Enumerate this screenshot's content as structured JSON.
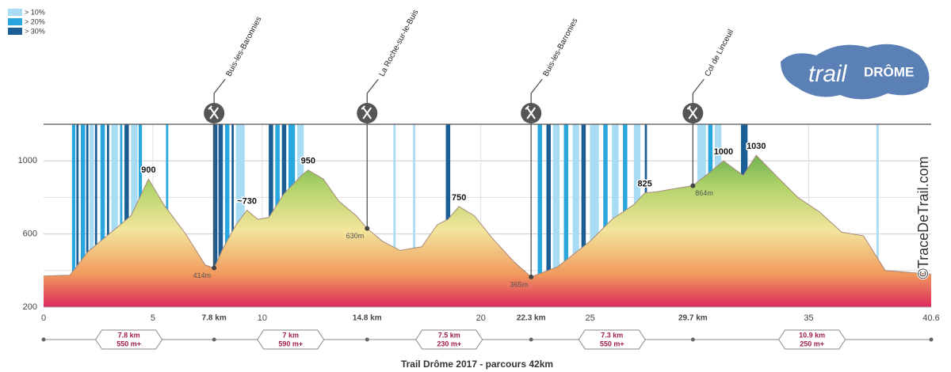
{
  "chart_data": {
    "type": "area",
    "title": "Trail Drôme 2017 - parcours 42km",
    "watermark": "©TraceDeTrail.com",
    "logo": {
      "text1": "trail",
      "text2": "DRÔME"
    },
    "legend": [
      {
        "label": "> 10%",
        "color": "#a8dcf4"
      },
      {
        "label": "> 20%",
        "color": "#2aa6df"
      },
      {
        "label": "> 30%",
        "color": "#1b5e95"
      }
    ],
    "xlim": [
      0,
      40.6
    ],
    "ylim": [
      200,
      1200
    ],
    "yticks": [
      200,
      600,
      1000
    ],
    "minor_yticks": [
      400,
      800
    ],
    "xticks": [
      0,
      5,
      {
        "value": 7.8,
        "label": "7.8 km"
      },
      10,
      {
        "value": 14.8,
        "label": "14.8 km"
      },
      20,
      {
        "value": 22.3,
        "label": "22.3 km"
      },
      25,
      {
        "value": 29.7,
        "label": "29.7 km"
      },
      35,
      40.6
    ],
    "x": [
      0,
      1.2,
      1.5,
      2,
      3,
      4,
      4.8,
      5.5,
      6.5,
      7.4,
      7.8,
      8.2,
      8.8,
      9.3,
      9.8,
      10.3,
      11,
      11.8,
      12.1,
      12.8,
      13.5,
      14.3,
      14.8,
      15.5,
      16.3,
      17.3,
      18,
      18.5,
      19,
      19.7,
      20.5,
      21.5,
      22.3,
      23.5,
      25,
      26,
      27,
      27.5,
      28,
      29,
      29.7,
      30.5,
      31.1,
      32,
      32.6,
      33.5,
      34.5,
      35.5,
      36.5,
      37.5,
      38.5,
      40.6
    ],
    "values": [
      370,
      375,
      420,
      500,
      600,
      700,
      900,
      760,
      600,
      430,
      414,
      520,
      650,
      730,
      680,
      690,
      820,
      920,
      950,
      900,
      780,
      700,
      630,
      560,
      510,
      530,
      650,
      680,
      750,
      700,
      580,
      450,
      365,
      420,
      560,
      680,
      760,
      825,
      830,
      850,
      864,
      940,
      1000,
      920,
      1030,
      920,
      800,
      720,
      610,
      590,
      400,
      380
    ],
    "peaks": [
      {
        "x": 4.8,
        "value": 900,
        "label": "900"
      },
      {
        "x": 9.3,
        "value": 730,
        "label": "~730"
      },
      {
        "x": 12.1,
        "value": 950,
        "label": "950"
      },
      {
        "x": 19,
        "value": 750,
        "label": "750"
      },
      {
        "x": 27.5,
        "value": 825,
        "label": "825"
      },
      {
        "x": 31.1,
        "value": 1000,
        "label": "1000"
      },
      {
        "x": 32.6,
        "value": 1030,
        "label": "1030"
      }
    ],
    "stations": [
      {
        "name": "Buis-les-Baronnies",
        "km": 7.8,
        "elevation": 414,
        "elevation_label": "414m"
      },
      {
        "name": "La Roche-sur-le-Buis",
        "km": 14.8,
        "elevation": 630,
        "elevation_label": "630m"
      },
      {
        "name": "Buis-les-Barronies",
        "km": 22.3,
        "elevation": 365,
        "elevation_label": "365m"
      },
      {
        "name": "Col de Linceuil",
        "km": 29.7,
        "elevation": 864,
        "elevation_label": "864m"
      }
    ],
    "segments": [
      {
        "distance": 7.8,
        "distance_label": "7.8 km",
        "climb": 550,
        "climb_label": "550 m+"
      },
      {
        "distance": 7,
        "distance_label": "7 km",
        "climb": 590,
        "climb_label": "590 m+"
      },
      {
        "distance": 7.5,
        "distance_label": "7.5 km",
        "climb": 230,
        "climb_label": "230 m+"
      },
      {
        "distance": 7.3,
        "distance_label": "7.3 km",
        "climb": 550,
        "climb_label": "550 m+"
      },
      {
        "distance": 10.9,
        "distance_label": "10.9 km",
        "climb": 250,
        "climb_label": "250 m+"
      }
    ],
    "steep_sections": [
      [
        1.3,
        1.45,
        1
      ],
      [
        1.5,
        1.6,
        2
      ],
      [
        1.7,
        1.9,
        1
      ],
      [
        1.95,
        2.05,
        2
      ],
      [
        2.1,
        2.3,
        0
      ],
      [
        2.35,
        2.45,
        2
      ],
      [
        2.6,
        2.8,
        1
      ],
      [
        2.9,
        3.0,
        2
      ],
      [
        3.1,
        3.4,
        0
      ],
      [
        3.5,
        3.6,
        1
      ],
      [
        3.7,
        3.9,
        2
      ],
      [
        4.0,
        4.3,
        0
      ],
      [
        4.35,
        4.5,
        1
      ],
      [
        5.6,
        5.7,
        1
      ],
      [
        7.75,
        7.95,
        2
      ],
      [
        8.0,
        8.2,
        2
      ],
      [
        8.3,
        8.5,
        1
      ],
      [
        8.6,
        8.7,
        2
      ],
      [
        8.8,
        9.2,
        0
      ],
      [
        10.3,
        10.5,
        2
      ],
      [
        10.6,
        10.8,
        1
      ],
      [
        10.9,
        11.1,
        2
      ],
      [
        11.2,
        11.5,
        1
      ],
      [
        11.6,
        11.9,
        0
      ],
      [
        16.0,
        16.1,
        0
      ],
      [
        16.9,
        17.0,
        0
      ],
      [
        18.4,
        18.6,
        2
      ],
      [
        22.6,
        22.8,
        1
      ],
      [
        23.0,
        23.2,
        2
      ],
      [
        23.3,
        23.6,
        0
      ],
      [
        23.8,
        24.0,
        1
      ],
      [
        24.2,
        24.5,
        0
      ],
      [
        24.6,
        24.8,
        2
      ],
      [
        25.0,
        25.4,
        0
      ],
      [
        25.6,
        25.8,
        1
      ],
      [
        26.0,
        26.3,
        0
      ],
      [
        26.5,
        26.7,
        1
      ],
      [
        27.0,
        27.3,
        0
      ],
      [
        27.5,
        27.6,
        2
      ],
      [
        29.9,
        30.3,
        0
      ],
      [
        30.4,
        30.6,
        1
      ],
      [
        30.7,
        31.0,
        0
      ],
      [
        31.9,
        32.2,
        2
      ],
      [
        38.1,
        38.2,
        0
      ]
    ],
    "grid": true
  }
}
